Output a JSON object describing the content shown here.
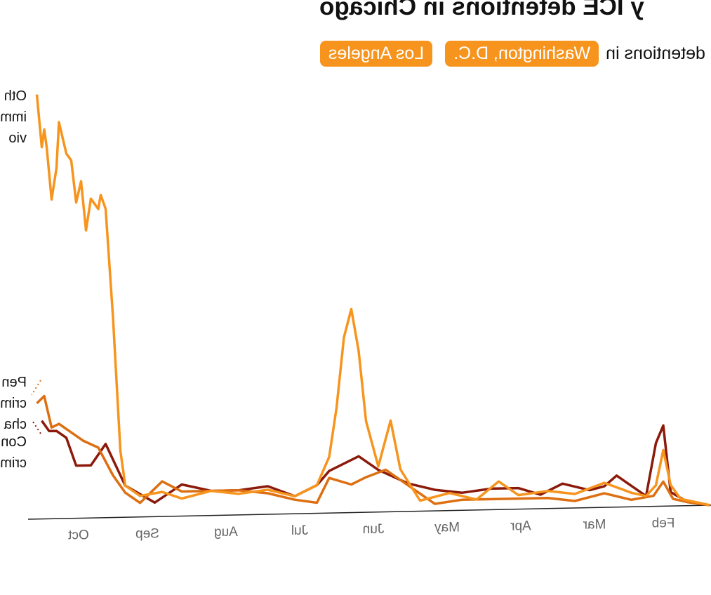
{
  "header": {
    "title": "y ICE detentions in Chicago",
    "subtitle_prefix": "o see detentions in",
    "buttons": [
      "Washington, D.C.",
      "Los Angeles"
    ]
  },
  "colors": {
    "accent": "#f7941d",
    "other": "#f7941d",
    "pending": "#dd6f12",
    "convicted": "#8b1a0a"
  },
  "chart_data": {
    "type": "line",
    "title": "y ICE detentions in Chicago",
    "xlabel": "",
    "ylabel": "",
    "x_unit": "days since Feb 1",
    "month_ticks": [
      {
        "label": "Feb",
        "day": 0
      },
      {
        "label": "Mar",
        "day": 28
      },
      {
        "label": "Apr",
        "day": 58
      },
      {
        "label": "May",
        "day": 88
      },
      {
        "label": "Jun",
        "day": 118
      },
      {
        "label": "Jul",
        "day": 148
      },
      {
        "label": "Aug",
        "day": 178
      },
      {
        "label": "Sep",
        "day": 210
      },
      {
        "label": "Oct",
        "day": 238
      }
    ],
    "series": [
      {
        "key": "other",
        "name_lines": [
          "Oth",
          "imm",
          "vio"
        ],
        "color": "#f7941d",
        "x": [
          -19,
          -13,
          -7,
          -3,
          0,
          3,
          7,
          13,
          24,
          36,
          47,
          59,
          67,
          76,
          87,
          99,
          107,
          111,
          116,
          121,
          124,
          127,
          130,
          133,
          136,
          141,
          150,
          161,
          173,
          184,
          196,
          204,
          213,
          219,
          221,
          224,
          227,
          229,
          230,
          233,
          235,
          237,
          239,
          241,
          243,
          246,
          247,
          249,
          251,
          252,
          253,
          255
        ],
        "values": [
          0,
          1,
          2,
          6,
          16,
          6,
          3,
          4,
          7,
          4,
          5,
          4,
          8,
          3,
          5,
          3,
          12,
          26,
          13,
          26,
          46,
          58,
          50,
          30,
          16,
          8,
          5,
          7,
          6,
          7,
          5,
          7,
          6,
          9,
          19,
          57,
          88,
          92,
          88,
          91,
          82,
          96,
          90,
          102,
          104,
          113,
          100,
          91,
          106,
          111,
          106,
          121
        ]
      },
      {
        "key": "pending",
        "name_lines": [
          "Pen",
          "crim",
          "cha"
        ],
        "color": "#dd6f12",
        "x": [
          -19,
          -10,
          -4,
          0,
          4,
          13,
          24,
          36,
          47,
          59,
          70,
          82,
          93,
          101,
          113,
          121,
          127,
          136,
          141,
          150,
          161,
          173,
          184,
          196,
          204,
          213,
          219,
          224,
          230,
          236,
          242,
          246,
          249,
          252,
          255
        ],
        "values": [
          0,
          1,
          2,
          7,
          3,
          2,
          4,
          2,
          3,
          3,
          3,
          3,
          2,
          6,
          12,
          10,
          8,
          10,
          3,
          4,
          6,
          7,
          7,
          7,
          10,
          4,
          7,
          12,
          20,
          22,
          25,
          27,
          26,
          35,
          33
        ]
      },
      {
        "key": "convicted",
        "name_lines": [
          "Con",
          "crim"
        ],
        "color": "#8b1a0a",
        "x": [
          -19,
          -10,
          -3,
          0,
          3,
          7,
          19,
          24,
          30,
          41,
          50,
          59,
          70,
          82,
          93,
          104,
          116,
          124,
          136,
          141,
          150,
          161,
          173,
          184,
          196,
          207,
          219,
          227,
          233,
          239,
          243,
          247,
          250,
          253
        ],
        "values": [
          0,
          1,
          4,
          23,
          18,
          3,
          9,
          6,
          5,
          7,
          4,
          6,
          6,
          5,
          6,
          8,
          12,
          16,
          12,
          8,
          5,
          8,
          7,
          7,
          9,
          4,
          9,
          21,
          15,
          15,
          23,
          25,
          25,
          28
        ]
      }
    ]
  }
}
